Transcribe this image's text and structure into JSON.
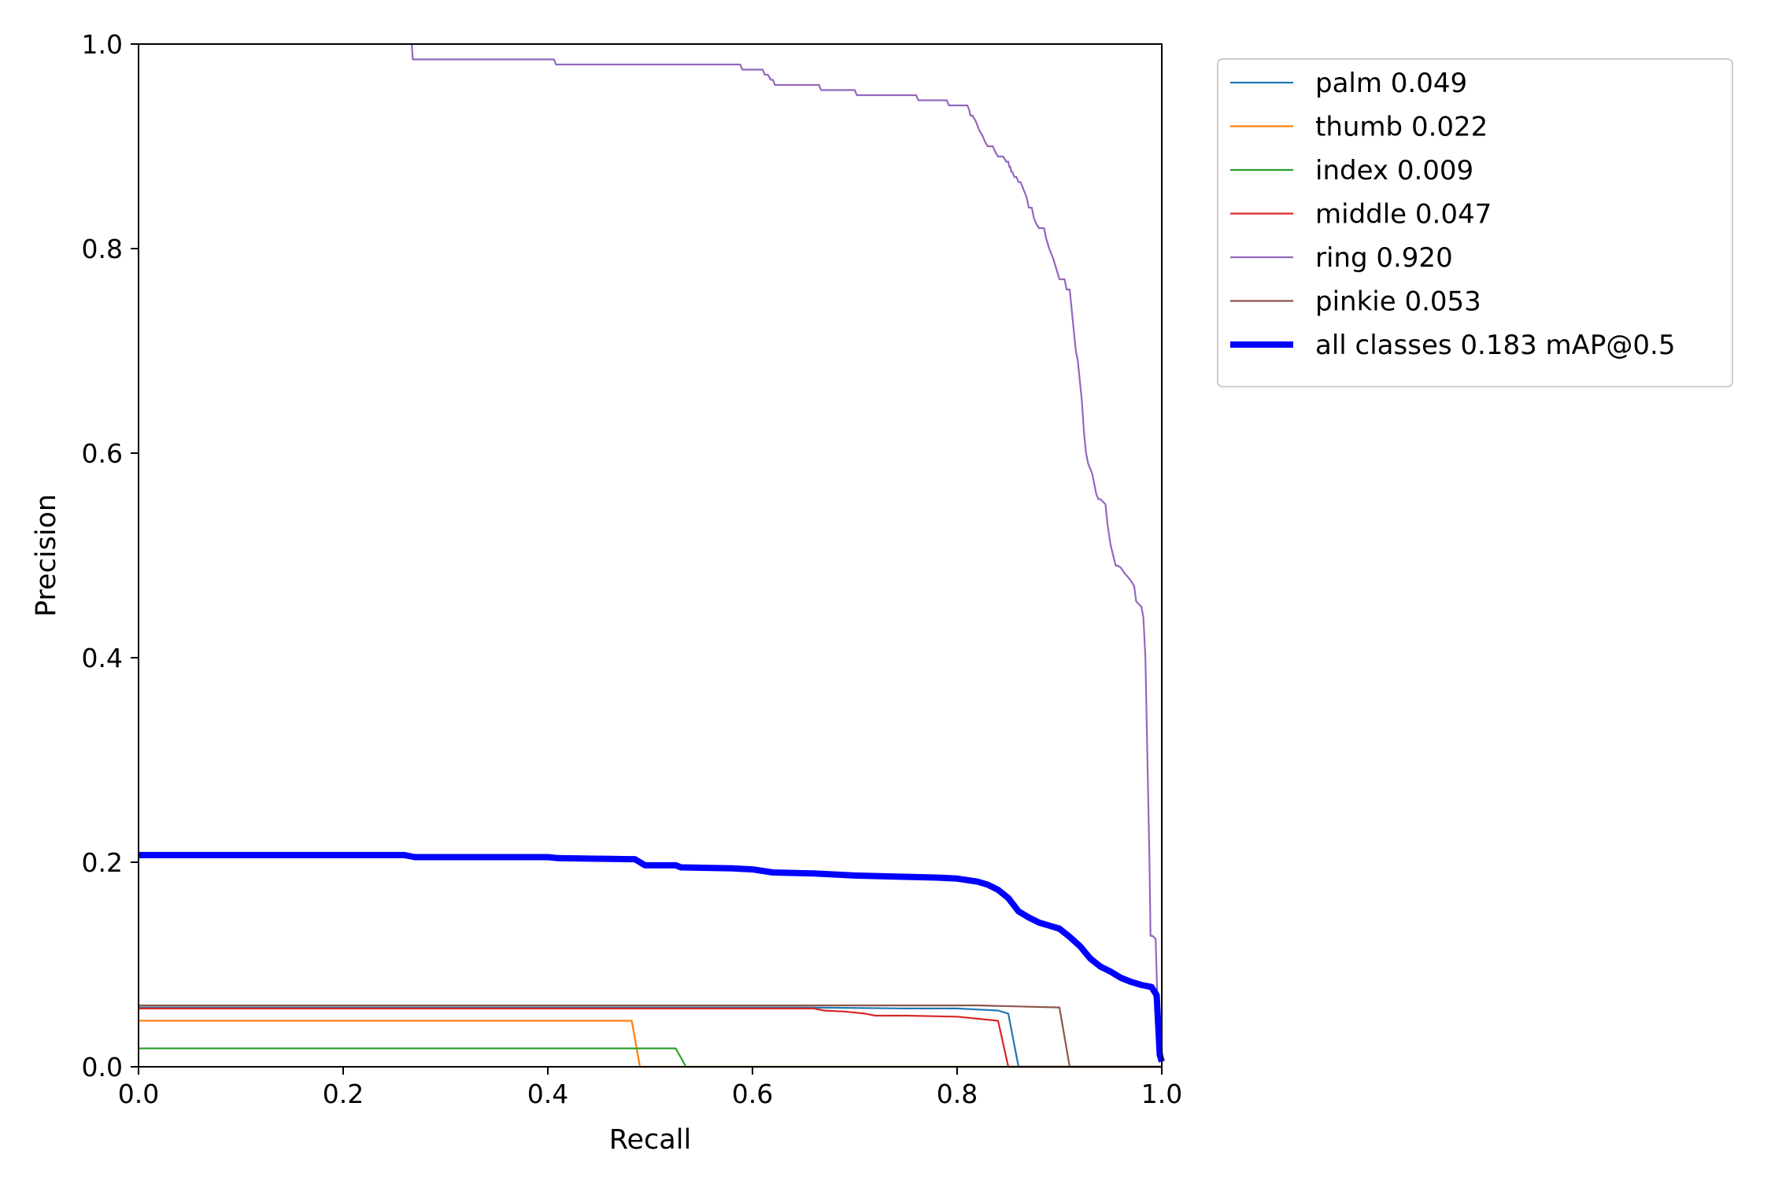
{
  "chart_data": {
    "type": "line",
    "title": "",
    "xlabel": "Recall",
    "ylabel": "Precision",
    "xlim": [
      0,
      1
    ],
    "ylim": [
      0,
      1
    ],
    "grid": false,
    "legend_position": "outside-top-right",
    "x_ticks": [
      "0.0",
      "0.2",
      "0.4",
      "0.6",
      "0.8",
      "1.0"
    ],
    "y_ticks": [
      "0.0",
      "0.2",
      "0.4",
      "0.6",
      "0.8",
      "1.0"
    ],
    "series": [
      {
        "name": "palm 0.049",
        "color": "#1f77b4",
        "bold": false,
        "x": [
          0.0,
          0.65,
          0.75,
          0.8,
          0.82,
          0.84,
          0.85,
          0.86,
          0.86,
          1.0
        ],
        "y": [
          0.058,
          0.058,
          0.057,
          0.057,
          0.056,
          0.055,
          0.052,
          0.0,
          0.0,
          0.0
        ]
      },
      {
        "name": "thumb 0.022",
        "color": "#ff7f0e",
        "bold": false,
        "x": [
          0.0,
          0.482,
          0.49,
          0.49,
          1.0
        ],
        "y": [
          0.045,
          0.045,
          0.0,
          0.0,
          0.0
        ]
      },
      {
        "name": "index 0.009",
        "color": "#2ca02c",
        "bold": false,
        "x": [
          0.0,
          0.525,
          0.535,
          1.0
        ],
        "y": [
          0.018,
          0.018,
          0.0,
          0.0
        ]
      },
      {
        "name": "middle 0.047",
        "color": "#d62728",
        "bold": false,
        "x": [
          0.0,
          0.66,
          0.67,
          0.69,
          0.71,
          0.72,
          0.75,
          0.8,
          0.84,
          0.85,
          0.85,
          1.0
        ],
        "y": [
          0.057,
          0.057,
          0.055,
          0.054,
          0.052,
          0.05,
          0.05,
          0.049,
          0.045,
          0.0,
          0.0,
          0.0
        ]
      },
      {
        "name": "ring 0.920",
        "color": "#9467bd",
        "bold": false,
        "x": [
          0.267,
          0.268,
          0.34,
          0.406,
          0.408,
          0.588,
          0.59,
          0.61,
          0.612,
          0.615,
          0.618,
          0.62,
          0.622,
          0.665,
          0.667,
          0.7,
          0.702,
          0.76,
          0.762,
          0.79,
          0.792,
          0.81,
          0.812,
          0.813,
          0.815,
          0.818,
          0.82,
          0.822,
          0.825,
          0.827,
          0.83,
          0.835,
          0.837,
          0.84,
          0.845,
          0.848,
          0.85,
          0.851,
          0.852,
          0.853,
          0.854,
          0.856,
          0.858,
          0.86,
          0.862,
          0.864,
          0.866,
          0.868,
          0.87,
          0.873,
          0.875,
          0.877,
          0.88,
          0.885,
          0.887,
          0.89,
          0.894,
          0.897,
          0.9,
          0.905,
          0.907,
          0.91,
          0.912,
          0.914,
          0.916,
          0.918,
          0.92,
          0.922,
          0.924,
          0.926,
          0.928,
          0.93,
          0.932,
          0.934,
          0.936,
          0.938,
          0.94,
          0.945,
          0.947,
          0.95,
          0.955,
          0.957,
          0.96,
          0.962,
          0.964,
          0.966,
          0.97,
          0.973,
          0.975,
          0.98,
          0.982,
          0.984,
          0.986,
          0.988,
          0.989,
          0.99,
          0.991,
          0.992,
          0.993,
          0.994,
          0.995,
          0.996,
          0.997,
          0.998,
          0.999,
          1.0
        ],
        "y": [
          1.0,
          0.985,
          0.985,
          0.985,
          0.98,
          0.98,
          0.975,
          0.975,
          0.97,
          0.97,
          0.965,
          0.965,
          0.96,
          0.96,
          0.955,
          0.955,
          0.95,
          0.95,
          0.945,
          0.945,
          0.94,
          0.94,
          0.935,
          0.93,
          0.93,
          0.925,
          0.92,
          0.915,
          0.91,
          0.905,
          0.9,
          0.9,
          0.895,
          0.89,
          0.89,
          0.885,
          0.885,
          0.88,
          0.88,
          0.875,
          0.875,
          0.87,
          0.87,
          0.865,
          0.865,
          0.86,
          0.855,
          0.85,
          0.84,
          0.84,
          0.83,
          0.825,
          0.82,
          0.82,
          0.81,
          0.8,
          0.79,
          0.78,
          0.77,
          0.77,
          0.76,
          0.76,
          0.74,
          0.72,
          0.7,
          0.69,
          0.67,
          0.65,
          0.62,
          0.6,
          0.59,
          0.585,
          0.58,
          0.57,
          0.56,
          0.555,
          0.555,
          0.55,
          0.53,
          0.51,
          0.49,
          0.49,
          0.488,
          0.485,
          0.482,
          0.48,
          0.475,
          0.47,
          0.455,
          0.45,
          0.44,
          0.4,
          0.3,
          0.2,
          0.128,
          0.128,
          0.128,
          0.127,
          0.126,
          0.125,
          0.09,
          0.06,
          0.05,
          0.04,
          0.03,
          0.02
        ]
      },
      {
        "name": "pinkie 0.053",
        "color": "#8c564b",
        "bold": false,
        "x": [
          0.0,
          0.6,
          0.82,
          0.86,
          0.9,
          0.91,
          0.91,
          1.0
        ],
        "y": [
          0.06,
          0.06,
          0.06,
          0.059,
          0.058,
          0.0,
          0.0,
          0.0
        ]
      },
      {
        "name": "all classes 0.183 mAP@0.5",
        "color": "#0000ff",
        "bold": true,
        "x": [
          0.0,
          0.26,
          0.27,
          0.4,
          0.41,
          0.48,
          0.485,
          0.49,
          0.495,
          0.525,
          0.53,
          0.58,
          0.6,
          0.62,
          0.66,
          0.7,
          0.74,
          0.78,
          0.8,
          0.82,
          0.83,
          0.84,
          0.85,
          0.86,
          0.87,
          0.88,
          0.89,
          0.9,
          0.91,
          0.92,
          0.93,
          0.94,
          0.95,
          0.96,
          0.97,
          0.98,
          0.99,
          0.995,
          0.998,
          1.0
        ],
        "y": [
          0.207,
          0.207,
          0.205,
          0.205,
          0.204,
          0.203,
          0.203,
          0.2,
          0.197,
          0.197,
          0.195,
          0.194,
          0.193,
          0.19,
          0.189,
          0.187,
          0.186,
          0.185,
          0.184,
          0.181,
          0.178,
          0.173,
          0.165,
          0.152,
          0.146,
          0.141,
          0.138,
          0.135,
          0.127,
          0.118,
          0.106,
          0.098,
          0.093,
          0.087,
          0.083,
          0.08,
          0.078,
          0.07,
          0.012,
          0.005
        ]
      }
    ]
  }
}
